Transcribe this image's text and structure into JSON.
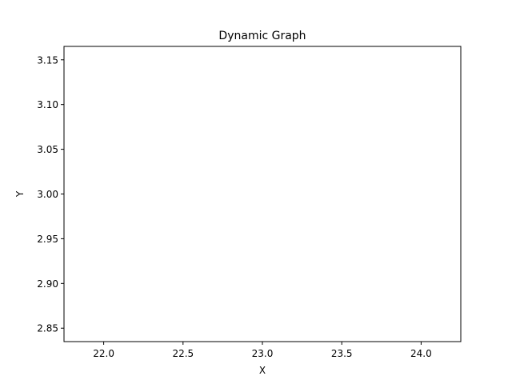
{
  "chart_data": {
    "type": "line",
    "title": "Dynamic Graph",
    "xlabel": "X",
    "ylabel": "Y",
    "xlim": [
      21.75,
      24.25
    ],
    "ylim": [
      2.835,
      3.165
    ],
    "x_ticks": [
      22.0,
      22.5,
      23.0,
      23.5,
      24.0
    ],
    "x_tick_labels": [
      "22.0",
      "22.5",
      "23.0",
      "23.5",
      "24.0"
    ],
    "y_ticks": [
      2.85,
      2.9,
      2.95,
      3.0,
      3.05,
      3.1,
      3.15
    ],
    "y_tick_labels": [
      "2.85",
      "2.90",
      "2.95",
      "3.00",
      "3.05",
      "3.10",
      "3.15"
    ],
    "grid": false,
    "series": []
  }
}
